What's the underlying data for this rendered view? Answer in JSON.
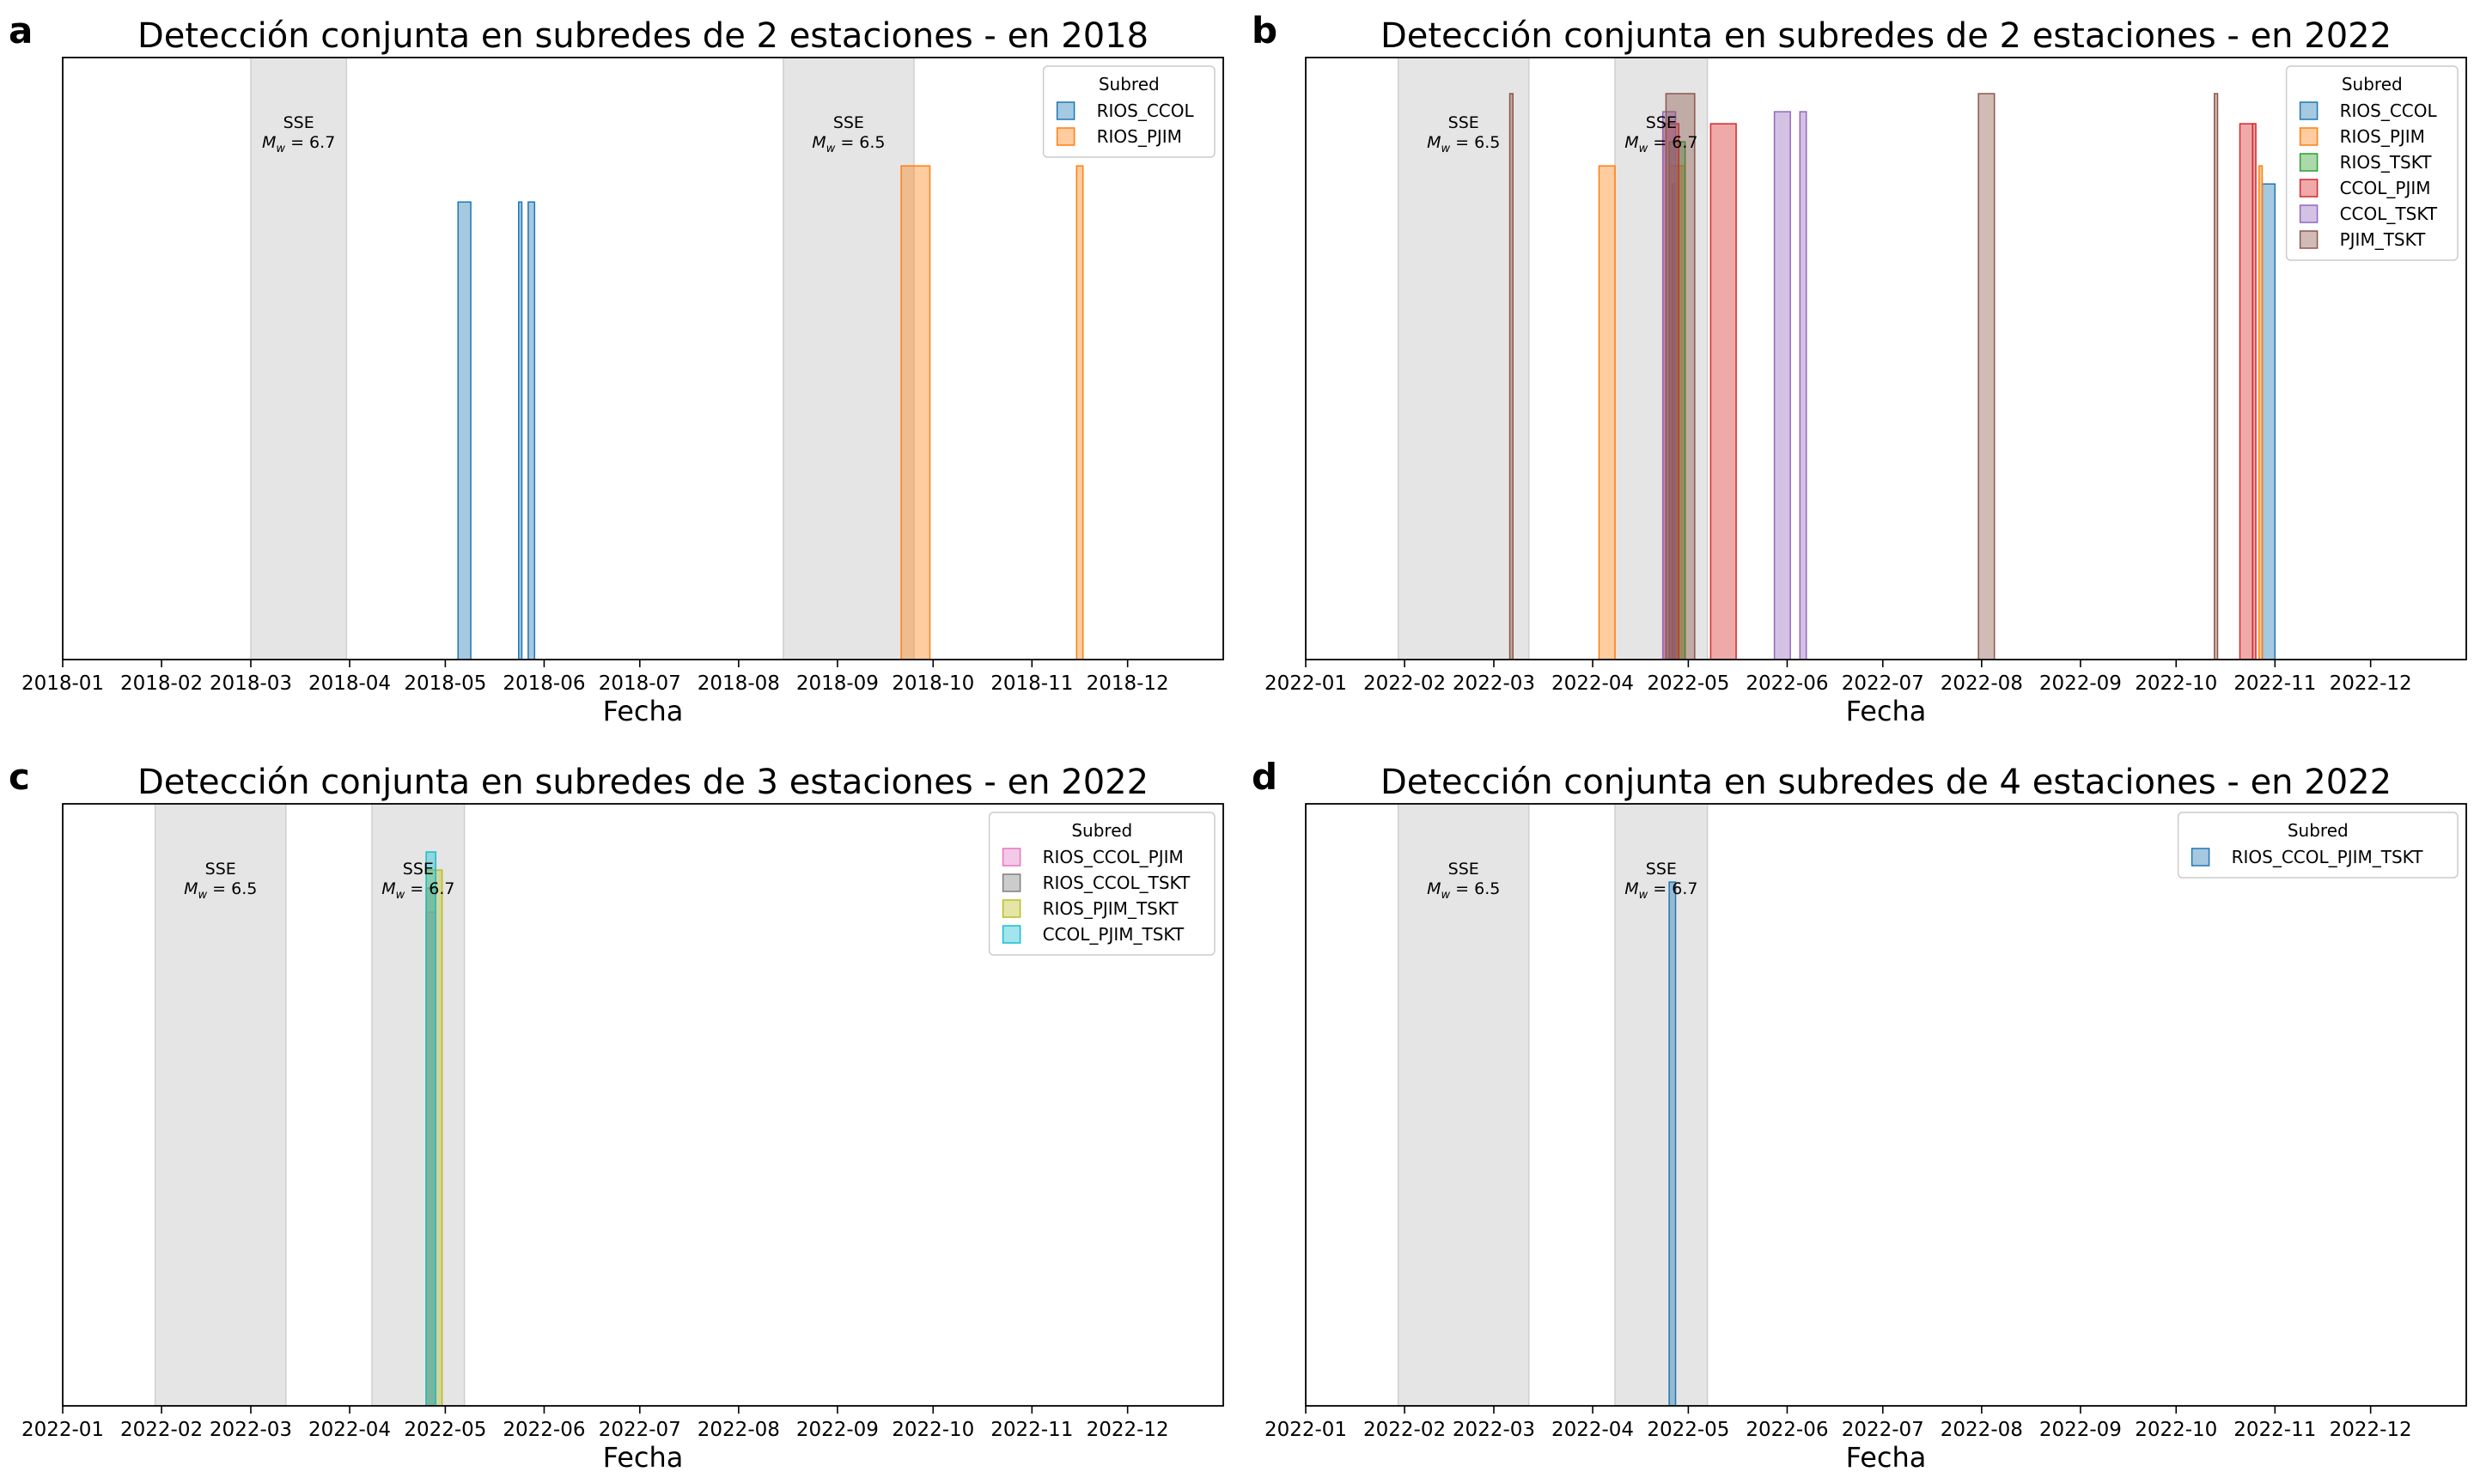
{
  "colors": {
    "RIOS_CCOL": "#1f77b4",
    "RIOS_PJIM": "#ff7f0e",
    "RIOS_TSKT": "#2ca02c",
    "CCOL_PJIM": "#d62728",
    "CCOL_TSKT": "#9467bd",
    "PJIM_TSKT": "#8c564b",
    "RIOS_CCOL_PJIM": "#e377c2",
    "RIOS_CCOL_TSKT": "#7f7f7f",
    "RIOS_PJIM_TSKT": "#bcbd22",
    "CCOL_PJIM_TSKT": "#17becf",
    "RIOS_CCOL_PJIM_TSKT": "#1f77b4",
    "sse_shade": "#e5e5e5"
  },
  "chart_data": [
    {
      "panel": "a",
      "type": "bar",
      "title": "Detección conjunta en subredes de 2 estaciones - en 2018",
      "xlabel": "Fecha",
      "ylabel": "",
      "year": 2018,
      "xlim": [
        "2018-01-01",
        "2018-12-31"
      ],
      "xticks": [
        "2018-01",
        "2018-02",
        "2018-03",
        "2018-04",
        "2018-05",
        "2018-06",
        "2018-07",
        "2018-08",
        "2018-09",
        "2018-10",
        "2018-11",
        "2018-12"
      ],
      "legend": {
        "title": "Subred",
        "position": "top-right",
        "entries": [
          "RIOS_CCOL",
          "RIOS_PJIM"
        ]
      },
      "sse": [
        {
          "start": "2018-03-01",
          "end": "2018-03-31",
          "label": "SSE",
          "mw": "M_w = 6.7"
        },
        {
          "start": "2018-08-15",
          "end": "2018-09-25",
          "label": "SSE",
          "mw": "M_w = 6.5"
        }
      ],
      "series": [
        {
          "name": "RIOS_CCOL",
          "bars": [
            {
              "start": "2018-05-05",
              "end": "2018-05-09",
              "value": 0.76
            },
            {
              "start": "2018-05-24",
              "end": "2018-05-25",
              "value": 0.76
            },
            {
              "start": "2018-05-27",
              "end": "2018-05-29",
              "value": 0.76
            }
          ]
        },
        {
          "name": "RIOS_PJIM",
          "bars": [
            {
              "start": "2018-09-21",
              "end": "2018-09-30",
              "value": 0.82
            },
            {
              "start": "2018-11-15",
              "end": "2018-11-17",
              "value": 0.82
            }
          ]
        }
      ]
    },
    {
      "panel": "b",
      "type": "bar",
      "title": "Detección conjunta en subredes de 2 estaciones - en 2022",
      "xlabel": "Fecha",
      "ylabel": "",
      "year": 2022,
      "xlim": [
        "2022-01-01",
        "2022-12-31"
      ],
      "xticks": [
        "2022-01",
        "2022-02",
        "2022-03",
        "2022-04",
        "2022-05",
        "2022-06",
        "2022-07",
        "2022-08",
        "2022-09",
        "2022-10",
        "2022-11",
        "2022-12"
      ],
      "legend": {
        "title": "Subred",
        "position": "top-right",
        "entries": [
          "RIOS_CCOL",
          "RIOS_PJIM",
          "RIOS_TSKT",
          "CCOL_PJIM",
          "CCOL_TSKT",
          "PJIM_TSKT"
        ]
      },
      "sse": [
        {
          "start": "2022-01-30",
          "end": "2022-03-12",
          "label": "SSE",
          "mw": "M_w = 6.5"
        },
        {
          "start": "2022-04-08",
          "end": "2022-05-07",
          "label": "SSE",
          "mw": "M_w = 6.7"
        }
      ],
      "series": [
        {
          "name": "RIOS_CCOL",
          "bars": [
            {
              "start": "2022-04-26",
              "end": "2022-04-27",
              "value": 0.79
            },
            {
              "start": "2022-10-28",
              "end": "2022-11-01",
              "value": 0.79
            }
          ]
        },
        {
          "name": "RIOS_PJIM",
          "bars": [
            {
              "start": "2022-04-03",
              "end": "2022-04-08",
              "value": 0.82
            },
            {
              "start": "2022-04-25",
              "end": "2022-04-30",
              "value": 0.82
            },
            {
              "start": "2022-10-27",
              "end": "2022-10-28",
              "value": 0.82
            }
          ]
        },
        {
          "name": "RIOS_TSKT",
          "bars": [
            {
              "start": "2022-04-25",
              "end": "2022-04-30",
              "value": 0.86
            }
          ]
        },
        {
          "name": "CCOL_PJIM",
          "bars": [
            {
              "start": "2022-04-23",
              "end": "2022-04-28",
              "value": 0.89
            },
            {
              "start": "2022-05-08",
              "end": "2022-05-16",
              "value": 0.89
            },
            {
              "start": "2022-10-21",
              "end": "2022-10-25",
              "value": 0.89
            },
            {
              "start": "2022-10-25",
              "end": "2022-10-26",
              "value": 0.89
            }
          ]
        },
        {
          "name": "CCOL_TSKT",
          "bars": [
            {
              "start": "2022-05-28",
              "end": "2022-06-02",
              "value": 0.91
            },
            {
              "start": "2022-06-05",
              "end": "2022-06-07",
              "value": 0.91
            },
            {
              "start": "2022-04-23",
              "end": "2022-04-27",
              "value": 0.91
            }
          ]
        },
        {
          "name": "PJIM_TSKT",
          "bars": [
            {
              "start": "2022-03-06",
              "end": "2022-03-07",
              "value": 0.94
            },
            {
              "start": "2022-04-24",
              "end": "2022-05-03",
              "value": 0.94
            },
            {
              "start": "2022-07-31",
              "end": "2022-08-05",
              "value": 0.94
            },
            {
              "start": "2022-10-13",
              "end": "2022-10-14",
              "value": 0.94
            }
          ]
        }
      ]
    },
    {
      "panel": "c",
      "type": "bar",
      "title": "Detección conjunta en subredes de 3 estaciones - en 2022",
      "xlabel": "Fecha",
      "ylabel": "",
      "year": 2022,
      "xlim": [
        "2022-01-01",
        "2022-12-31"
      ],
      "xticks": [
        "2022-01",
        "2022-02",
        "2022-03",
        "2022-04",
        "2022-05",
        "2022-06",
        "2022-07",
        "2022-08",
        "2022-09",
        "2022-10",
        "2022-11",
        "2022-12"
      ],
      "legend": {
        "title": "Subred",
        "position": "top-right",
        "entries": [
          "RIOS_CCOL_PJIM",
          "RIOS_CCOL_TSKT",
          "RIOS_PJIM_TSKT",
          "CCOL_PJIM_TSKT"
        ]
      },
      "sse": [
        {
          "start": "2022-01-30",
          "end": "2022-03-12",
          "label": "SSE",
          "mw": "M_w = 6.5"
        },
        {
          "start": "2022-04-08",
          "end": "2022-05-07",
          "label": "SSE",
          "mw": "M_w = 6.7"
        }
      ],
      "series": [
        {
          "name": "RIOS_CCOL_PJIM",
          "bars": [
            {
              "start": "2022-04-25",
              "end": "2022-04-28",
              "value": 0.82
            }
          ]
        },
        {
          "name": "RIOS_CCOL_TSKT",
          "bars": [
            {
              "start": "2022-04-25",
              "end": "2022-04-28",
              "value": 0.86
            }
          ]
        },
        {
          "name": "RIOS_PJIM_TSKT",
          "bars": [
            {
              "start": "2022-04-25",
              "end": "2022-04-30",
              "value": 0.89
            }
          ]
        },
        {
          "name": "CCOL_PJIM_TSKT",
          "bars": [
            {
              "start": "2022-04-25",
              "end": "2022-04-28",
              "value": 0.92
            }
          ]
        }
      ]
    },
    {
      "panel": "d",
      "type": "bar",
      "title": "Detección conjunta en subredes de 4 estaciones - en 2022",
      "xlabel": "Fecha",
      "ylabel": "",
      "year": 2022,
      "xlim": [
        "2022-01-01",
        "2022-12-31"
      ],
      "xticks": [
        "2022-01",
        "2022-02",
        "2022-03",
        "2022-04",
        "2022-05",
        "2022-06",
        "2022-07",
        "2022-08",
        "2022-09",
        "2022-10",
        "2022-11",
        "2022-12"
      ],
      "legend": {
        "title": "Subred",
        "position": "top-right",
        "entries": [
          "RIOS_CCOL_PJIM_TSKT"
        ]
      },
      "sse": [
        {
          "start": "2022-01-30",
          "end": "2022-03-12",
          "label": "SSE",
          "mw": "M_w = 6.5"
        },
        {
          "start": "2022-04-08",
          "end": "2022-05-07",
          "label": "SSE",
          "mw": "M_w = 6.7"
        }
      ],
      "series": [
        {
          "name": "RIOS_CCOL_PJIM_TSKT",
          "bars": [
            {
              "start": "2022-04-25",
              "end": "2022-04-27",
              "value": 0.87
            }
          ]
        }
      ]
    }
  ]
}
